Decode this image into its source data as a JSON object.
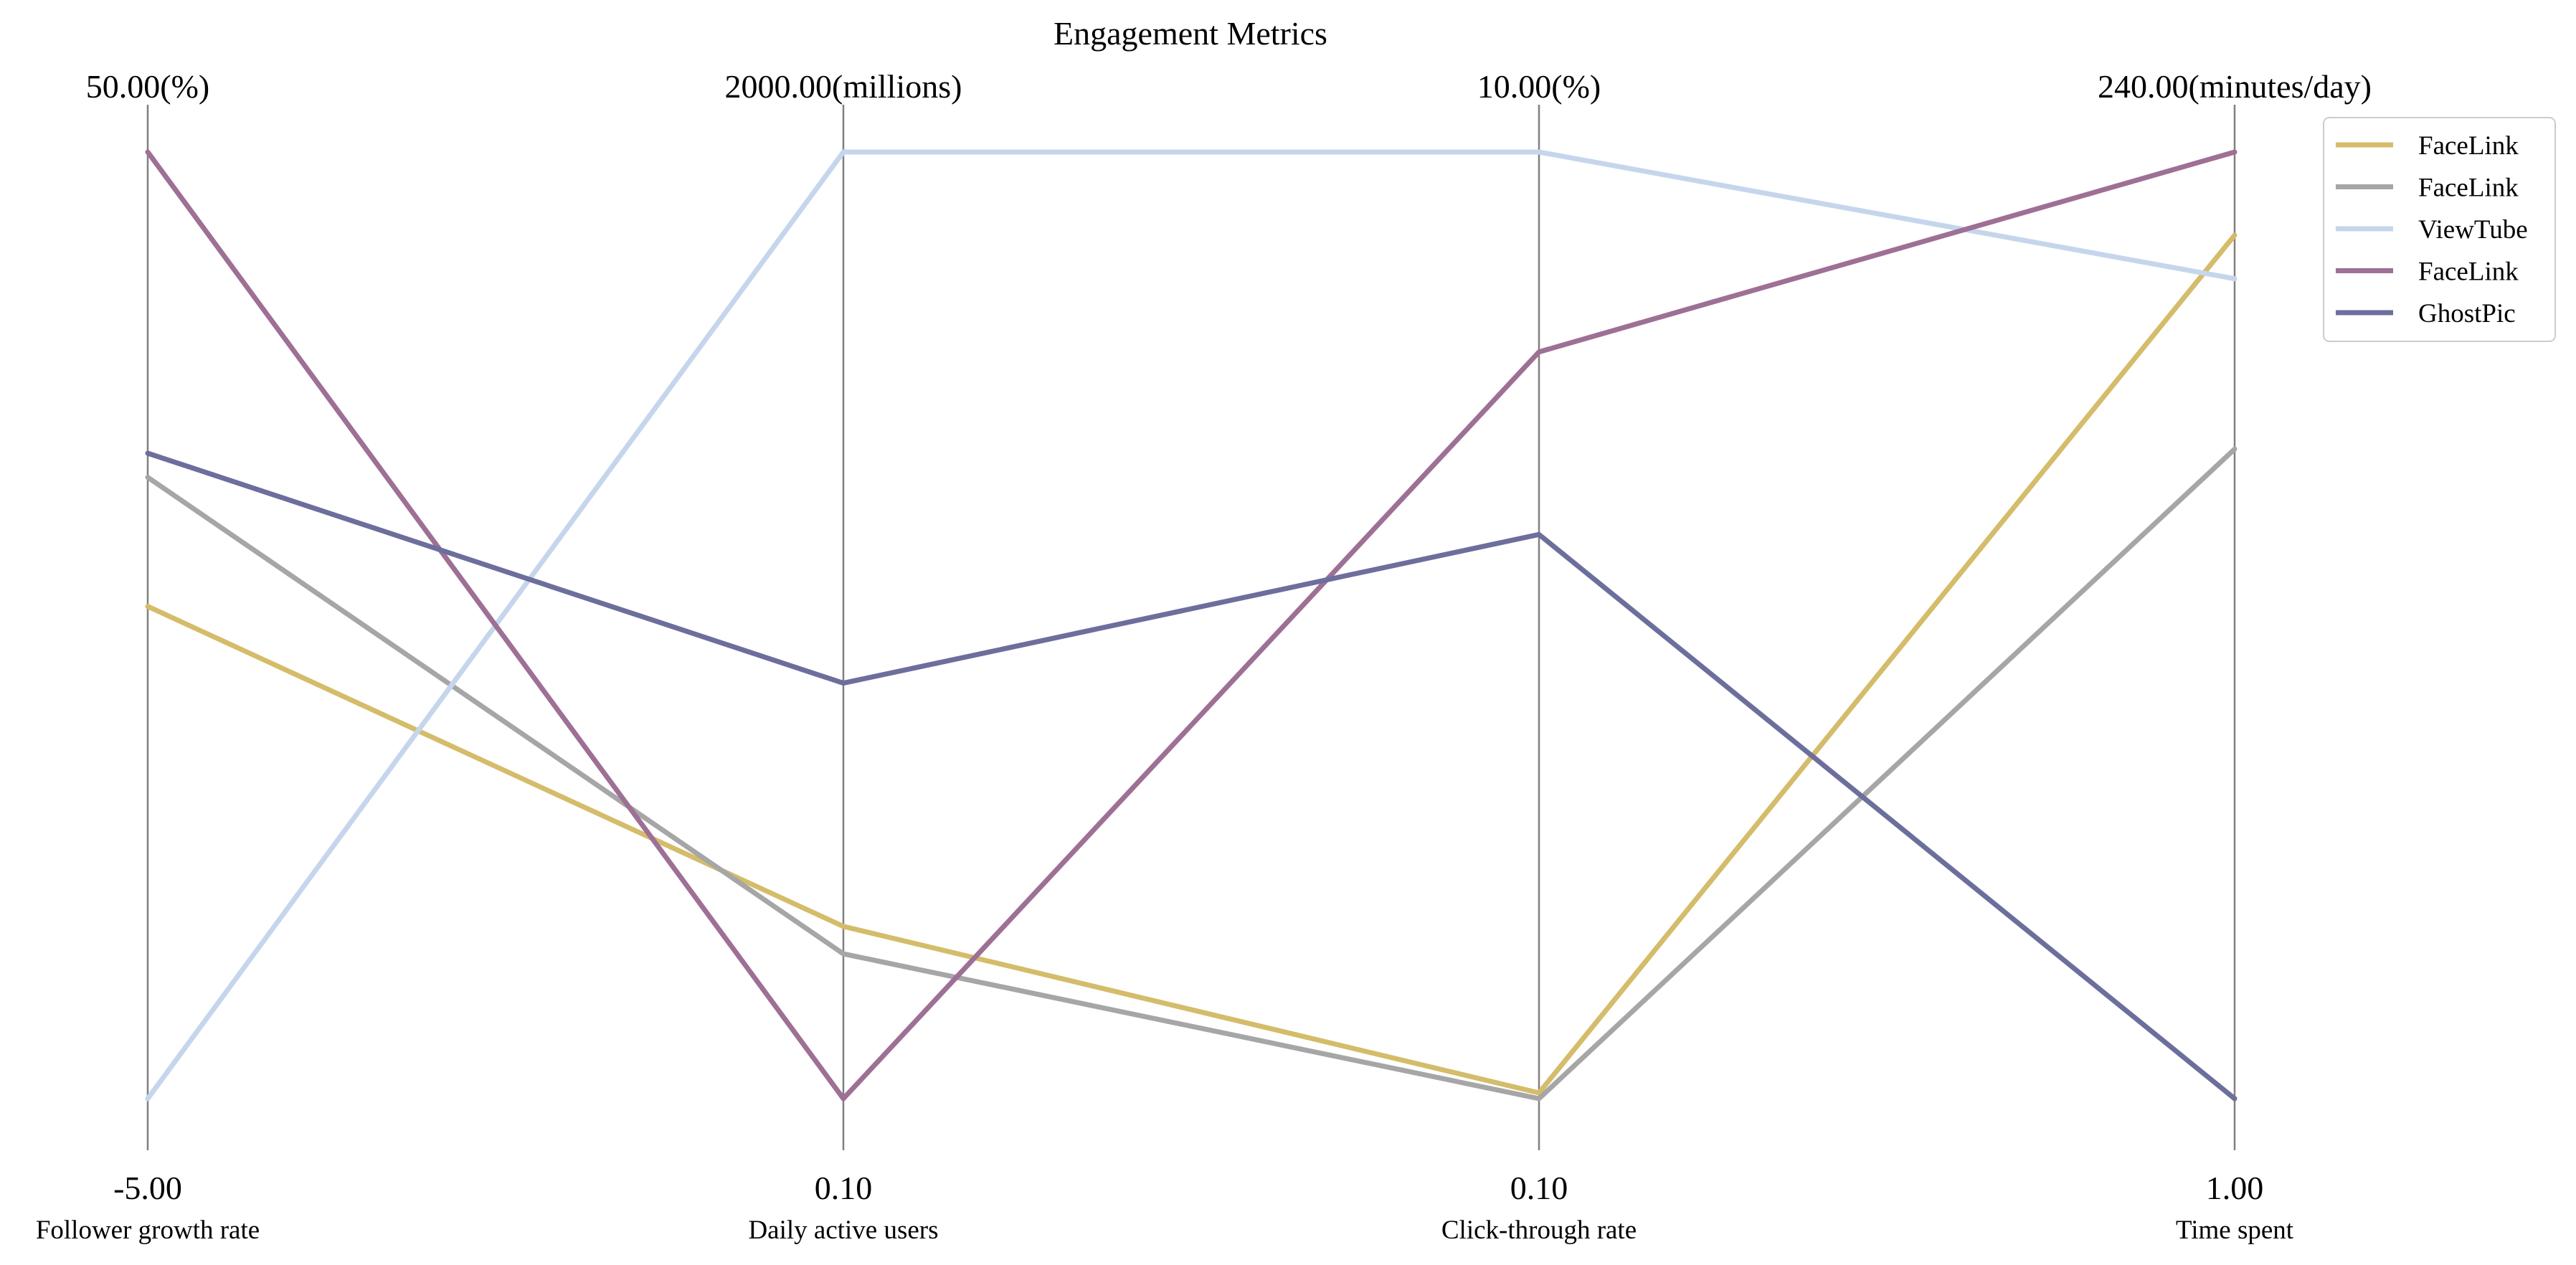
{
  "chart_data": {
    "type": "parallel_coordinates",
    "title": "Engagement Metrics",
    "axes": [
      {
        "label": "Follower growth rate",
        "min": -5.0,
        "max": 50.0,
        "min_label": "-5.00",
        "max_label": "50.00(%)"
      },
      {
        "label": "Daily active users",
        "min": 0.1,
        "max": 2000.0,
        "min_label": "0.10",
        "max_label": "2000.00(millions)"
      },
      {
        "label": "Click-through rate",
        "min": 0.1,
        "max": 10.0,
        "min_label": "0.10",
        "max_label": "10.00(%)"
      },
      {
        "label": "Time spent",
        "min": 1.0,
        "max": 240.0,
        "min_label": "1.00",
        "max_label": "240.00(minutes/day)"
      }
    ],
    "series": [
      {
        "name": "FaceLink",
        "color": "#d4bc6a",
        "values": [
          23.6,
          364,
          0.16,
          219
        ]
      },
      {
        "name": "FaceLink",
        "color": "#a6a6a6",
        "values": [
          31.1,
          306,
          0.1,
          165
        ]
      },
      {
        "name": "ViewTube",
        "color": "#c5d6ec",
        "values": [
          -5.0,
          2000,
          10.0,
          208
        ]
      },
      {
        "name": "FaceLink",
        "color": "#9e7095",
        "values": [
          50.0,
          0.1,
          7.91,
          240
        ]
      },
      {
        "name": "GhostPic",
        "color": "#6c6e9c",
        "values": [
          32.5,
          878,
          6.0,
          1.0
        ]
      }
    ],
    "legend_position": "top-right",
    "grid": false
  }
}
